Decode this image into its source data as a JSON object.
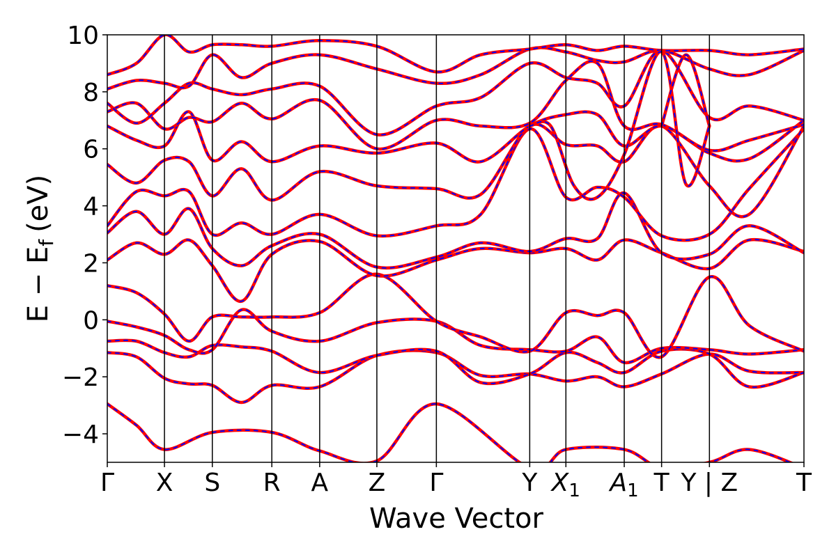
{
  "chart_data": {
    "type": "line",
    "xlabel": "Wave Vector",
    "ylabel": "E − E",
    "ylabel_subscript": "f",
    "ylabel_unit": "(eV)",
    "ylim": [
      -5,
      10
    ],
    "yticks": [
      {
        "value": -4,
        "label": "−4"
      },
      {
        "value": -2,
        "label": "−2"
      },
      {
        "value": 0,
        "label": "0"
      },
      {
        "value": 2,
        "label": "2"
      },
      {
        "value": 4,
        "label": "4"
      },
      {
        "value": 6,
        "label": "6"
      },
      {
        "value": 8,
        "label": "8"
      },
      {
        "value": 10,
        "label": "10"
      }
    ],
    "kpoints": [
      {
        "label": "Γ",
        "sub": "",
        "italic": false,
        "x": 0.0
      },
      {
        "label": "X",
        "sub": "",
        "italic": false,
        "x": 0.49
      },
      {
        "label": "S",
        "sub": "",
        "italic": false,
        "x": 0.9
      },
      {
        "label": "R",
        "sub": "",
        "italic": false,
        "x": 1.41
      },
      {
        "label": "A",
        "sub": "",
        "italic": false,
        "x": 1.82
      },
      {
        "label": "Z",
        "sub": "",
        "italic": false,
        "x": 2.31
      },
      {
        "label": "Γ",
        "sub": "",
        "italic": false,
        "x": 2.82
      },
      {
        "label": "Y",
        "sub": "",
        "italic": false,
        "x": 3.62
      },
      {
        "label": "X",
        "sub": "1",
        "italic": true,
        "x": 3.93
      },
      {
        "label": "A",
        "sub": "1",
        "italic": true,
        "x": 4.43
      },
      {
        "label": "T",
        "sub": "",
        "italic": false,
        "x": 4.75
      },
      {
        "label": "Y | Z",
        "sub": "",
        "italic": false,
        "x": 5.16
      },
      {
        "label": "T",
        "sub": "",
        "italic": false,
        "x": 5.97
      }
    ],
    "xlim": [
      0.0,
      5.97
    ],
    "colors": {
      "solid": "#ff0000",
      "dashed": "#0000ff",
      "vline": "#000000"
    },
    "series": [
      {
        "x": [
          0.0,
          0.25,
          0.49,
          0.9,
          1.41,
          1.82,
          2.31,
          2.82,
          3.62,
          3.93,
          4.43,
          4.75,
          5.16,
          5.5,
          5.97
        ],
        "values": [
          -2.95,
          -3.7,
          -4.55,
          -3.95,
          -3.95,
          -4.6,
          -4.95,
          -2.95,
          -5.2,
          -4.55,
          -4.55,
          -5.2,
          -5.0,
          -4.55,
          -5.2
        ]
      },
      {
        "x": [
          0.0,
          0.25,
          0.49,
          0.7,
          0.9,
          1.15,
          1.41,
          1.82,
          2.31,
          2.82,
          3.2,
          3.62,
          3.93,
          4.2,
          4.43,
          4.75,
          5.16,
          5.5,
          5.97
        ],
        "values": [
          -1.15,
          -1.3,
          -2.05,
          -2.25,
          -2.3,
          -2.9,
          -2.3,
          -2.35,
          -1.25,
          -1.15,
          -1.95,
          -1.9,
          -2.15,
          -2.0,
          -2.35,
          -1.9,
          -1.2,
          -1.8,
          -1.85
        ]
      },
      {
        "x": [
          0.0,
          0.25,
          0.49,
          0.7,
          0.9,
          1.15,
          1.41,
          1.82,
          2.31,
          2.82,
          3.2,
          3.62,
          3.93,
          4.2,
          4.43,
          4.75,
          5.16,
          5.5,
          5.97
        ],
        "values": [
          -0.75,
          -0.75,
          -1.15,
          -1.3,
          -0.9,
          -0.95,
          -1.1,
          -1.85,
          -1.25,
          -1.1,
          -2.2,
          -1.9,
          -1.15,
          -1.5,
          -1.85,
          -1.1,
          -1.2,
          -2.35,
          -1.85
        ]
      },
      {
        "x": [
          0.0,
          0.25,
          0.49,
          0.7,
          0.9,
          1.15,
          1.41,
          1.82,
          2.31,
          2.82,
          3.2,
          3.62,
          3.93,
          4.2,
          4.43,
          4.75,
          5.16,
          5.5,
          5.97
        ],
        "values": [
          -0.05,
          -0.25,
          -0.55,
          -1.05,
          -1.05,
          0.35,
          -0.4,
          -0.75,
          -0.1,
          -0.05,
          -0.9,
          -1.05,
          -1.1,
          -0.6,
          -1.5,
          -1.0,
          -1.05,
          -1.2,
          -1.05
        ]
      },
      {
        "x": [
          0.0,
          0.25,
          0.49,
          0.7,
          0.9,
          1.15,
          1.41,
          1.82,
          2.31,
          2.82,
          3.2,
          3.62,
          3.93,
          4.2,
          4.43,
          4.75,
          5.16,
          5.5,
          5.97
        ],
        "values": [
          1.2,
          0.95,
          0.2,
          -0.75,
          0.1,
          0.1,
          0.1,
          0.25,
          1.6,
          -0.05,
          -0.6,
          -1.1,
          0.25,
          0.15,
          0.25,
          -1.3,
          1.5,
          -0.2,
          -1.1
        ]
      },
      {
        "x": [
          0.0,
          0.25,
          0.49,
          0.7,
          0.9,
          1.15,
          1.41,
          1.82,
          2.31,
          2.82,
          3.2,
          3.62,
          3.93,
          4.2,
          4.43,
          4.75,
          5.16,
          5.5,
          5.97
        ],
        "values": [
          2.1,
          2.7,
          2.3,
          2.8,
          1.9,
          0.65,
          2.3,
          2.75,
          1.55,
          2.1,
          2.5,
          2.35,
          2.5,
          2.1,
          2.8,
          2.35,
          1.8,
          2.8,
          2.4
        ]
      },
      {
        "x": [
          0.0,
          0.25,
          0.49,
          0.7,
          0.9,
          1.15,
          1.41,
          1.82,
          2.31,
          2.82,
          3.2,
          3.62,
          3.93,
          4.2,
          4.43,
          4.75,
          5.16,
          5.5,
          5.97
        ],
        "values": [
          3.05,
          3.8,
          3.0,
          3.9,
          2.5,
          1.9,
          2.6,
          3.0,
          1.85,
          2.2,
          2.7,
          2.4,
          2.85,
          2.85,
          4.45,
          2.35,
          2.3,
          3.3,
          2.35
        ]
      },
      {
        "x": [
          0.0,
          0.25,
          0.49,
          0.7,
          0.9,
          1.15,
          1.41,
          1.82,
          2.31,
          2.82,
          3.2,
          3.62,
          3.93,
          4.2,
          4.43,
          4.75,
          5.16,
          5.5,
          5.97
        ],
        "values": [
          3.3,
          4.5,
          4.35,
          4.5,
          3.0,
          3.4,
          3.0,
          3.7,
          2.95,
          3.3,
          3.7,
          6.7,
          4.3,
          4.65,
          4.3,
          2.95,
          3.0,
          4.6,
          6.7
        ]
      },
      {
        "x": [
          0.0,
          0.25,
          0.49,
          0.7,
          0.9,
          1.15,
          1.41,
          1.82,
          2.31,
          2.82,
          3.2,
          3.62,
          3.93,
          4.2,
          4.43,
          4.75,
          5.16,
          5.5,
          5.97
        ],
        "values": [
          5.45,
          4.8,
          5.6,
          5.55,
          4.35,
          5.3,
          4.2,
          5.2,
          4.7,
          4.6,
          4.4,
          6.8,
          6.15,
          6.1,
          5.55,
          6.8,
          4.7,
          3.7,
          6.8
        ]
      },
      {
        "x": [
          0.0,
          0.25,
          0.49,
          0.7,
          0.9,
          1.15,
          1.41,
          1.82,
          2.31,
          2.82,
          3.2,
          3.62,
          3.93,
          4.2,
          4.43,
          4.75,
          5.16,
          5.5,
          5.97
        ],
        "values": [
          6.8,
          6.3,
          6.1,
          7.3,
          5.6,
          6.25,
          5.55,
          6.1,
          5.85,
          6.2,
          5.55,
          6.8,
          7.2,
          7.2,
          6.1,
          6.8,
          5.85,
          5.65,
          7.0
        ]
      },
      {
        "x": [
          0.0,
          0.25,
          0.49,
          0.7,
          0.9,
          1.15,
          1.41,
          1.82,
          2.31,
          2.82,
          3.2,
          3.62,
          3.93,
          4.2,
          4.43,
          4.75,
          5.16,
          5.5,
          5.97
        ],
        "values": [
          7.3,
          7.6,
          6.7,
          7.1,
          6.95,
          7.6,
          7.05,
          7.7,
          6.0,
          7.0,
          6.8,
          6.9,
          8.4,
          9.0,
          6.8,
          6.85,
          5.95,
          6.3,
          6.85
        ]
      },
      {
        "x": [
          0.0,
          0.25,
          0.49,
          0.7,
          0.9,
          1.15,
          1.41,
          1.82,
          2.31,
          2.82,
          3.2,
          3.62,
          3.93,
          4.2,
          4.43,
          4.75,
          5.16,
          5.5,
          5.97
        ],
        "values": [
          7.6,
          6.9,
          7.6,
          8.3,
          8.1,
          7.9,
          8.1,
          8.2,
          6.5,
          7.5,
          7.8,
          9.0,
          8.5,
          8.3,
          7.5,
          9.45,
          7.1,
          7.5,
          7.0
        ]
      },
      {
        "x": [
          0.0,
          0.25,
          0.49,
          0.7,
          0.9,
          1.15,
          1.41,
          1.82,
          2.31,
          2.82,
          3.2,
          3.62,
          3.93,
          4.2,
          4.43,
          4.75,
          5.16,
          5.5,
          5.97
        ],
        "values": [
          8.1,
          8.4,
          8.3,
          8.2,
          9.3,
          8.5,
          9.0,
          9.3,
          8.8,
          8.3,
          8.6,
          9.5,
          9.4,
          9.1,
          9.05,
          9.45,
          8.8,
          8.6,
          9.45
        ]
      },
      {
        "x": [
          0.0,
          0.25,
          0.49,
          0.7,
          0.9,
          1.15,
          1.41,
          1.82,
          2.31,
          2.82,
          3.2,
          3.62,
          3.93,
          4.2,
          4.43,
          4.75,
          5.16,
          5.5,
          5.97
        ],
        "values": [
          8.6,
          9.0,
          10.0,
          9.4,
          9.65,
          9.65,
          9.6,
          9.8,
          9.6,
          8.7,
          9.3,
          9.5,
          9.65,
          9.45,
          9.6,
          9.45,
          9.45,
          9.3,
          9.5
        ]
      },
      {
        "x": [
          3.62,
          3.8,
          4.0,
          4.2,
          4.43,
          4.75,
          4.96,
          5.16
        ],
        "values": [
          6.8,
          6.8,
          4.7,
          4.3,
          5.8,
          9.4,
          4.75,
          6.8
        ]
      },
      {
        "x": [
          4.75,
          4.96,
          5.16
        ],
        "values": [
          6.8,
          9.3,
          6.8
        ]
      }
    ]
  }
}
